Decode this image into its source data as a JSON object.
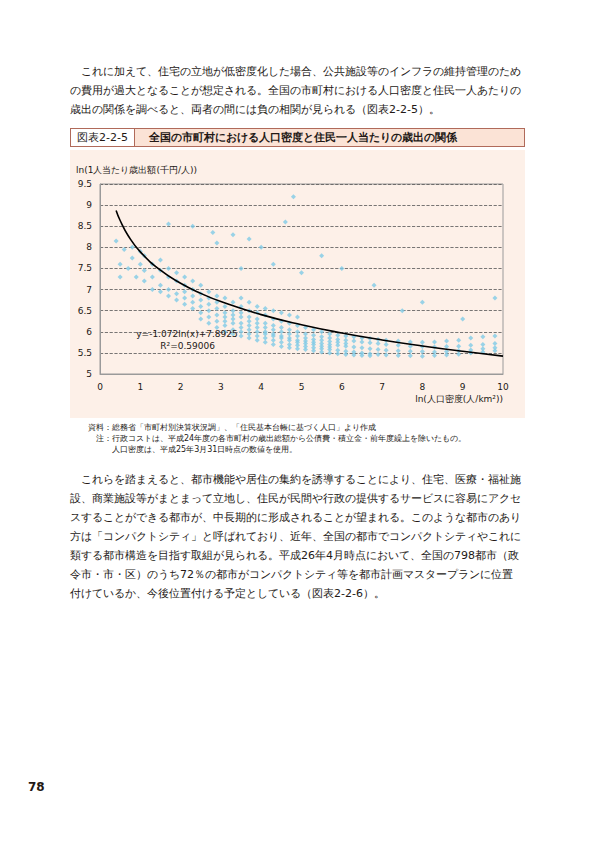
{
  "paragraphs_before": [
    "　これに加えて、住宅の立地が低密度化した場合、公共施設等のインフラの維持管理のため",
    "の費用が過大となることが想定される。全国の市町村における人口密度と住民一人あたりの",
    "歳出の関係を調べると、両者の間には負の相関が見られる（図表2-2-5）。"
  ],
  "figure": {
    "label": "図表2-2-5",
    "title": "全国の市町村における人口密度と住民一人当たりの歳出の関係",
    "notes": [
      "資料：総務省「市町村別決算状況調」、「住民基本台帳に基づく人口」より作成",
      "　注：行政コストは、平成24年度の各市町村の歳出総額から公債費・積立金・前年度繰上を除いたもの。",
      "　　　人口密度は、平成25年3月31日時点の数値を使用。"
    ]
  },
  "chart_data": {
    "type": "scatter",
    "x_label": "ln(人口密度(人/km²))",
    "y_label": "ln(1人当たり歳出額(千円/人))",
    "annotations": [
      "y=-1.072ln(x)+7.8925",
      "R²=0.59006"
    ],
    "xlim": [
      0,
      10
    ],
    "xticks": [
      0,
      1,
      2,
      3,
      4,
      5,
      6,
      7,
      8,
      9,
      10
    ],
    "ylim": [
      5,
      9.5
    ],
    "yticks": [
      5,
      5.5,
      6,
      6.5,
      7,
      7.5,
      8,
      8.5,
      9,
      9.5
    ],
    "grid": true,
    "series": [
      {
        "type": "scatter",
        "color": "#7fcbe6",
        "marker": "diamond",
        "points": [
          [
            0.4,
            8.15
          ],
          [
            0.5,
            7.6
          ],
          [
            0.6,
            7.95
          ],
          [
            0.7,
            7.5
          ],
          [
            0.8,
            7.75
          ],
          [
            0.9,
            7.3
          ],
          [
            1.0,
            7.6
          ],
          [
            0.5,
            7.3
          ],
          [
            0.8,
            8.0
          ],
          [
            1.0,
            7.9
          ],
          [
            1.7,
            8.55
          ],
          [
            2.3,
            8.5
          ],
          [
            2.8,
            8.35
          ],
          [
            3.3,
            8.3
          ],
          [
            2.9,
            8.1
          ],
          [
            4.8,
            9.2
          ],
          [
            4.6,
            8.6
          ],
          [
            3.7,
            8.2
          ],
          [
            4.0,
            8.0
          ],
          [
            5.5,
            7.8
          ],
          [
            6.0,
            7.5
          ],
          [
            6.8,
            7.1
          ],
          [
            8.0,
            6.7
          ],
          [
            9.8,
            6.8
          ],
          [
            5.0,
            7.4
          ],
          [
            4.3,
            7.6
          ],
          [
            3.5,
            7.5
          ],
          [
            7.5,
            6.5
          ],
          [
            9.0,
            6.3
          ],
          [
            1.1,
            7.45
          ],
          [
            1.1,
            7.8
          ],
          [
            1.1,
            7.2
          ],
          [
            1.3,
            7.6
          ],
          [
            1.3,
            7.3
          ],
          [
            1.3,
            7.0
          ],
          [
            1.5,
            7.45
          ],
          [
            1.5,
            7.1
          ],
          [
            1.5,
            7.7
          ],
          [
            1.5,
            6.95
          ],
          [
            1.7,
            7.3
          ],
          [
            1.7,
            7.0
          ],
          [
            1.7,
            7.5
          ],
          [
            1.7,
            6.85
          ],
          [
            1.9,
            7.2
          ],
          [
            1.9,
            6.9
          ],
          [
            1.9,
            7.4
          ],
          [
            1.9,
            6.75
          ],
          [
            2.1,
            7.1
          ],
          [
            2.1,
            6.8
          ],
          [
            2.1,
            7.3
          ],
          [
            2.1,
            6.65
          ],
          [
            2.1,
            6.95
          ],
          [
            2.3,
            7.0
          ],
          [
            2.3,
            6.7
          ],
          [
            2.3,
            6.55
          ],
          [
            2.3,
            7.2
          ],
          [
            2.3,
            6.85
          ],
          [
            2.5,
            6.9
          ],
          [
            2.5,
            6.6
          ],
          [
            2.5,
            6.45
          ],
          [
            2.5,
            7.1
          ],
          [
            2.5,
            6.75
          ],
          [
            2.5,
            6.3
          ],
          [
            2.7,
            6.8
          ],
          [
            2.7,
            6.5
          ],
          [
            2.7,
            6.35
          ],
          [
            2.7,
            6.95
          ],
          [
            2.7,
            6.2
          ],
          [
            2.7,
            6.65
          ],
          [
            2.9,
            6.7
          ],
          [
            2.9,
            6.4
          ],
          [
            2.9,
            6.25
          ],
          [
            2.9,
            6.85
          ],
          [
            2.9,
            6.1
          ],
          [
            2.9,
            6.55
          ],
          [
            3.1,
            6.6
          ],
          [
            3.1,
            6.35
          ],
          [
            3.1,
            6.15
          ],
          [
            3.1,
            6.8
          ],
          [
            3.1,
            6.0
          ],
          [
            3.1,
            6.45
          ],
          [
            3.1,
            6.25
          ],
          [
            3.3,
            6.5
          ],
          [
            3.3,
            6.3
          ],
          [
            3.3,
            6.05
          ],
          [
            3.3,
            6.7
          ],
          [
            3.3,
            5.95
          ],
          [
            3.3,
            6.4
          ],
          [
            3.3,
            6.2
          ],
          [
            3.5,
            6.45
          ],
          [
            3.5,
            6.2
          ],
          [
            3.5,
            6.0
          ],
          [
            3.5,
            6.6
          ],
          [
            3.5,
            5.9
          ],
          [
            3.5,
            6.35
          ],
          [
            3.5,
            6.1
          ],
          [
            3.5,
            6.8
          ],
          [
            3.7,
            6.35
          ],
          [
            3.7,
            6.15
          ],
          [
            3.7,
            5.95
          ],
          [
            3.7,
            6.5
          ],
          [
            3.7,
            5.85
          ],
          [
            3.7,
            6.25
          ],
          [
            3.7,
            6.05
          ],
          [
            3.7,
            6.7
          ],
          [
            3.9,
            6.3
          ],
          [
            3.9,
            6.1
          ],
          [
            3.9,
            5.9
          ],
          [
            3.9,
            6.45
          ],
          [
            3.9,
            5.8
          ],
          [
            3.9,
            6.2
          ],
          [
            3.9,
            6.0
          ],
          [
            3.9,
            6.6
          ],
          [
            4.1,
            6.2
          ],
          [
            4.1,
            6.0
          ],
          [
            4.1,
            5.85
          ],
          [
            4.1,
            6.4
          ],
          [
            4.1,
            5.75
          ],
          [
            4.1,
            6.1
          ],
          [
            4.1,
            5.95
          ],
          [
            4.1,
            6.55
          ],
          [
            4.3,
            6.15
          ],
          [
            4.3,
            5.95
          ],
          [
            4.3,
            5.8
          ],
          [
            4.3,
            6.3
          ],
          [
            4.3,
            5.7
          ],
          [
            4.3,
            6.05
          ],
          [
            4.3,
            5.9
          ],
          [
            4.3,
            6.5
          ],
          [
            4.5,
            6.1
          ],
          [
            4.5,
            5.9
          ],
          [
            4.5,
            5.75
          ],
          [
            4.5,
            6.25
          ],
          [
            4.5,
            5.65
          ],
          [
            4.5,
            6.0
          ],
          [
            4.5,
            5.85
          ],
          [
            4.5,
            6.45
          ],
          [
            4.7,
            6.05
          ],
          [
            4.7,
            5.85
          ],
          [
            4.7,
            5.7
          ],
          [
            4.7,
            6.2
          ],
          [
            4.7,
            5.62
          ],
          [
            4.7,
            5.95
          ],
          [
            4.7,
            5.8
          ],
          [
            4.7,
            6.4
          ],
          [
            4.9,
            6.0
          ],
          [
            4.9,
            5.8
          ],
          [
            4.9,
            5.68
          ],
          [
            4.9,
            6.15
          ],
          [
            4.9,
            5.6
          ],
          [
            4.9,
            5.9
          ],
          [
            4.9,
            5.75
          ],
          [
            4.9,
            6.35
          ],
          [
            5.1,
            5.95
          ],
          [
            5.1,
            5.78
          ],
          [
            5.1,
            5.65
          ],
          [
            5.1,
            6.1
          ],
          [
            5.1,
            5.58
          ],
          [
            5.1,
            5.85
          ],
          [
            5.1,
            5.72
          ],
          [
            5.3,
            5.92
          ],
          [
            5.3,
            5.75
          ],
          [
            5.3,
            5.62
          ],
          [
            5.3,
            6.05
          ],
          [
            5.3,
            5.55
          ],
          [
            5.3,
            5.82
          ],
          [
            5.3,
            5.7
          ],
          [
            5.5,
            5.88
          ],
          [
            5.5,
            5.72
          ],
          [
            5.5,
            5.6
          ],
          [
            5.5,
            6.0
          ],
          [
            5.5,
            5.52
          ],
          [
            5.5,
            5.8
          ],
          [
            5.5,
            5.66
          ],
          [
            5.7,
            5.85
          ],
          [
            5.7,
            5.7
          ],
          [
            5.7,
            5.58
          ],
          [
            5.7,
            5.95
          ],
          [
            5.7,
            5.5
          ],
          [
            5.7,
            5.77
          ],
          [
            5.7,
            5.64
          ],
          [
            5.9,
            5.82
          ],
          [
            5.9,
            5.68
          ],
          [
            5.9,
            5.56
          ],
          [
            5.9,
            5.92
          ],
          [
            5.9,
            5.48
          ],
          [
            5.9,
            5.75
          ],
          [
            6.1,
            5.8
          ],
          [
            6.1,
            5.66
          ],
          [
            6.1,
            5.54
          ],
          [
            6.1,
            5.9
          ],
          [
            6.1,
            5.46
          ],
          [
            6.1,
            5.72
          ],
          [
            6.3,
            5.78
          ],
          [
            6.3,
            5.64
          ],
          [
            6.3,
            5.52
          ],
          [
            6.3,
            5.88
          ],
          [
            6.3,
            5.45
          ],
          [
            6.5,
            5.76
          ],
          [
            6.5,
            5.62
          ],
          [
            6.5,
            5.5
          ],
          [
            6.5,
            5.85
          ],
          [
            6.5,
            5.44
          ],
          [
            6.7,
            5.74
          ],
          [
            6.7,
            5.6
          ],
          [
            6.7,
            5.48
          ],
          [
            6.7,
            5.84
          ],
          [
            6.7,
            5.43
          ],
          [
            6.9,
            5.72
          ],
          [
            6.9,
            5.58
          ],
          [
            6.9,
            5.46
          ],
          [
            6.9,
            5.82
          ],
          [
            7.1,
            5.7
          ],
          [
            7.1,
            5.56
          ],
          [
            7.1,
            5.45
          ],
          [
            7.1,
            5.8
          ],
          [
            7.4,
            5.68
          ],
          [
            7.4,
            5.55
          ],
          [
            7.4,
            5.44
          ],
          [
            7.4,
            5.78
          ],
          [
            7.7,
            5.66
          ],
          [
            7.7,
            5.54
          ],
          [
            7.7,
            5.43
          ],
          [
            7.7,
            5.76
          ],
          [
            8.0,
            5.65
          ],
          [
            8.0,
            5.53
          ],
          [
            8.0,
            5.42
          ],
          [
            8.0,
            5.75
          ],
          [
            8.3,
            5.64
          ],
          [
            8.3,
            5.52
          ],
          [
            8.3,
            5.44
          ],
          [
            8.3,
            5.76
          ],
          [
            8.6,
            5.65
          ],
          [
            8.6,
            5.53
          ],
          [
            8.6,
            5.45
          ],
          [
            8.6,
            5.78
          ],
          [
            8.9,
            5.66
          ],
          [
            8.9,
            5.55
          ],
          [
            8.9,
            5.47
          ],
          [
            8.9,
            5.8
          ],
          [
            9.2,
            5.68
          ],
          [
            9.2,
            5.57
          ],
          [
            9.2,
            5.5
          ],
          [
            9.2,
            5.85
          ],
          [
            9.5,
            5.7
          ],
          [
            9.5,
            5.6
          ],
          [
            9.5,
            5.52
          ],
          [
            9.5,
            5.88
          ],
          [
            9.8,
            5.72
          ],
          [
            9.8,
            5.62
          ],
          [
            9.8,
            5.55
          ],
          [
            9.8,
            5.9
          ]
        ]
      },
      {
        "type": "line",
        "color": "#000000",
        "line_style": "solid",
        "x": [
          0.4,
          0.5,
          0.7,
          1,
          1.5,
          2,
          2.5,
          3,
          4,
          5,
          6,
          7,
          8,
          9,
          10
        ],
        "values": [
          8.875,
          8.636,
          8.275,
          7.893,
          7.458,
          7.149,
          6.91,
          6.715,
          6.406,
          6.167,
          5.972,
          5.806,
          5.663,
          5.537,
          5.424
        ]
      }
    ]
  },
  "paragraphs_after": [
    "　これらを踏まえると、都市機能や居住の集約を誘導することにより、住宅、医療・福祉施",
    "設、商業施設等がまとまって立地し、住民が民間や行政の提供するサービスに容易にアクセ",
    "スすることができる都市が、中長期的に形成されることが望まれる。このような都市のあり",
    "方は「コンパクトシティ」と呼ばれており、近年、全国の都市でコンパクトシティやこれに",
    "類する都市構造を目指す取組が見られる。平成26年4月時点において、全国の798都市（政",
    "令市・市・区）のうち72％の都市がコンパクトシティ等を都市計画マスタープランに位置",
    "付けているか、今後位置付ける予定としている（図表2-2-6）。"
  ],
  "page_number": "78"
}
